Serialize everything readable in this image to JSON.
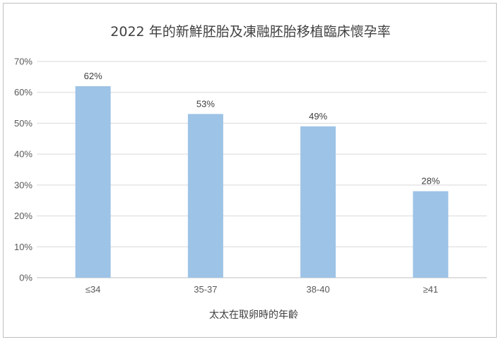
{
  "chart_data": {
    "type": "bar",
    "title": "2022 年的新鮮胚胎及凍融胚胎移植臨床懷孕率",
    "xlabel": "太太在取卵時的年齡",
    "ylabel": "",
    "categories": [
      "≤34",
      "35-37",
      "38-40",
      "≥41"
    ],
    "values": [
      62,
      53,
      49,
      28
    ],
    "value_labels": [
      "62%",
      "53%",
      "49%",
      "28%"
    ],
    "ylim": [
      0,
      70
    ],
    "yticks": [
      0,
      10,
      20,
      30,
      40,
      50,
      60,
      70
    ],
    "ytick_labels": [
      "0%",
      "10%",
      "20%",
      "30%",
      "40%",
      "50%",
      "60%",
      "70%"
    ],
    "grid": true,
    "legend": "none",
    "bar_color": "#9dc3e6"
  }
}
